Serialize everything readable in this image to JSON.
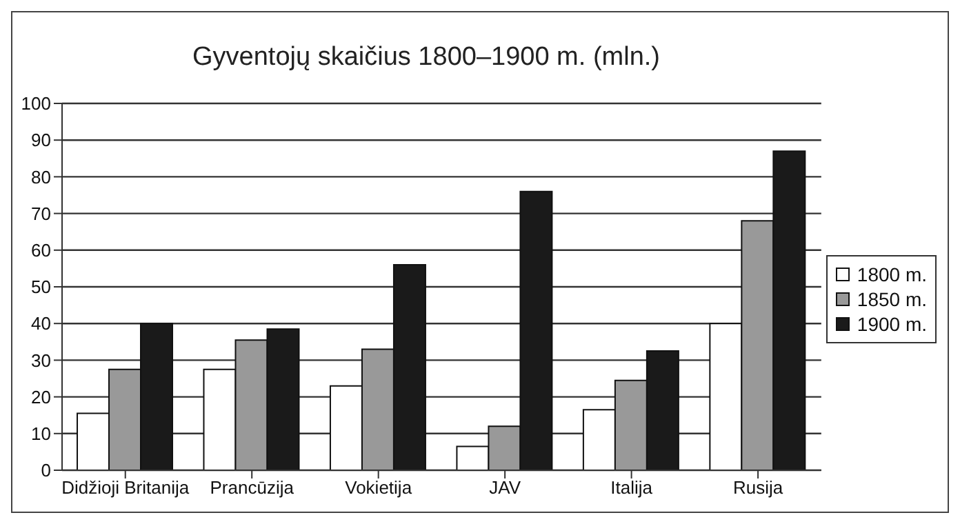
{
  "chart_data": {
    "type": "bar",
    "title": "Gyventojų skaičius 1800–1900 m. (mln.)",
    "categories": [
      "Didžioji Britanija",
      "Prancūzija",
      "Vokietija",
      "JAV",
      "Italija",
      "Rusija"
    ],
    "series": [
      {
        "name": "1800 m.",
        "color": "#ffffff",
        "values": [
          15.5,
          27.5,
          23,
          6.5,
          16.5,
          40
        ]
      },
      {
        "name": "1850 m.",
        "color": "#999999",
        "values": [
          27.5,
          35.5,
          33,
          12,
          24.5,
          68
        ]
      },
      {
        "name": "1900 m.",
        "color": "#1a1a1a",
        "values": [
          40,
          38.5,
          56,
          76,
          32.5,
          87
        ]
      }
    ],
    "ylim": [
      0,
      100
    ],
    "yticks": [
      0,
      10,
      20,
      30,
      40,
      50,
      60,
      70,
      80,
      90,
      100
    ],
    "grid": "y",
    "legend": "right"
  }
}
